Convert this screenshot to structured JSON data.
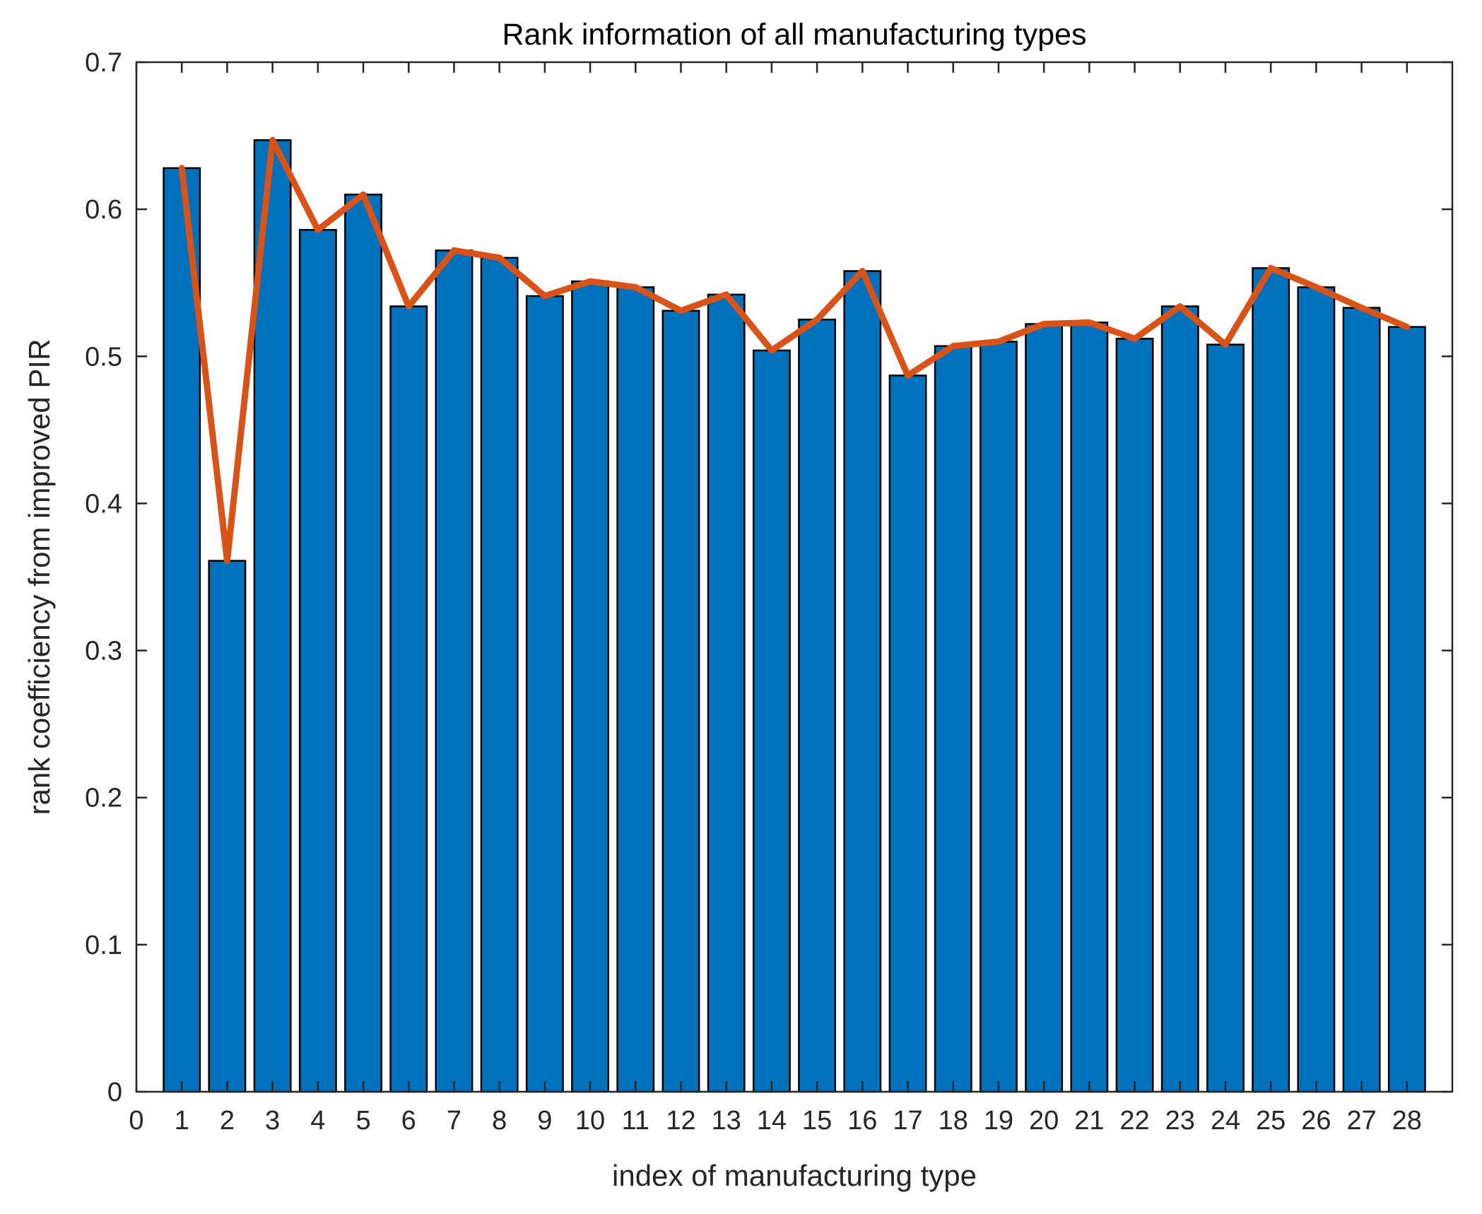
{
  "chart_data": {
    "type": "bar",
    "title": "Rank information of all manufacturing types",
    "xlabel": "index of manufacturing type",
    "ylabel": "rank coefficiency from improved PIR",
    "xlim": [
      0,
      29
    ],
    "ylim": [
      0,
      0.7
    ],
    "categories": [
      "1",
      "2",
      "3",
      "4",
      "5",
      "6",
      "7",
      "8",
      "9",
      "10",
      "11",
      "12",
      "13",
      "14",
      "15",
      "16",
      "17",
      "18",
      "19",
      "20",
      "21",
      "22",
      "23",
      "24",
      "25",
      "26",
      "27",
      "28"
    ],
    "values": [
      0.628,
      0.361,
      0.647,
      0.586,
      0.61,
      0.534,
      0.572,
      0.567,
      0.541,
      0.551,
      0.547,
      0.531,
      0.542,
      0.504,
      0.525,
      0.558,
      0.487,
      0.507,
      0.51,
      0.522,
      0.523,
      0.512,
      0.534,
      0.508,
      0.56,
      0.547,
      0.533,
      0.52
    ],
    "line_values": [
      0.628,
      0.361,
      0.647,
      0.586,
      0.61,
      0.534,
      0.572,
      0.567,
      0.541,
      0.551,
      0.547,
      0.531,
      0.542,
      0.504,
      0.525,
      0.558,
      0.487,
      0.507,
      0.51,
      0.522,
      0.523,
      0.512,
      0.534,
      0.508,
      0.56,
      0.547,
      0.533,
      0.52
    ],
    "x_ticks": [
      "0",
      "1",
      "2",
      "3",
      "4",
      "5",
      "6",
      "7",
      "8",
      "9",
      "10",
      "11",
      "12",
      "13",
      "14",
      "15",
      "16",
      "17",
      "18",
      "19",
      "20",
      "21",
      "22",
      "23",
      "24",
      "25",
      "26",
      "27",
      "28"
    ],
    "y_ticks": [
      "0",
      "0.1",
      "0.2",
      "0.3",
      "0.4",
      "0.5",
      "0.6",
      "0.7"
    ],
    "grid": false,
    "colors": {
      "bar": "#0072BD",
      "line": "#D95319"
    }
  }
}
